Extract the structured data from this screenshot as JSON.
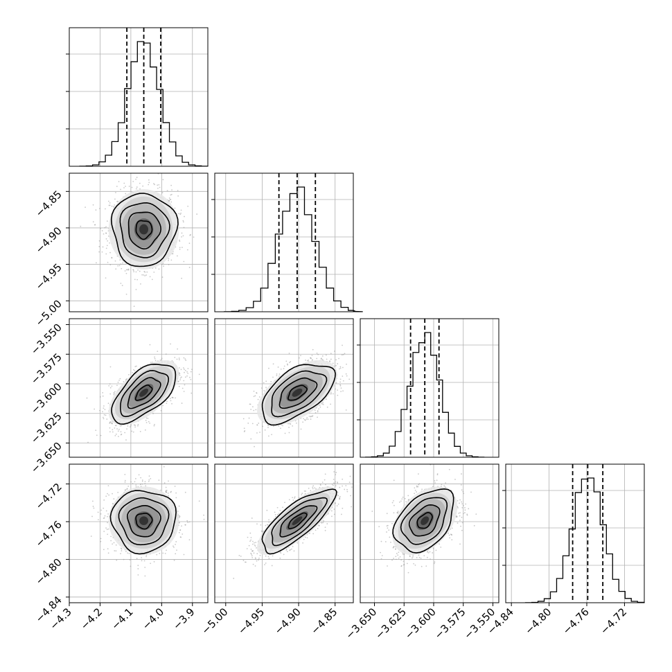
{
  "chart_data": {
    "type": "corner",
    "title": "",
    "grid": true,
    "parameters": [
      {
        "label": "",
        "mean": -4.058,
        "sigma": 0.052,
        "quantiles": [
          -4.113,
          -4.058,
          -4.003
        ],
        "axis_range": [
          -4.3,
          -3.85
        ],
        "ticks": [
          -4.3,
          -4.2,
          -4.1,
          -4.0,
          -3.9
        ],
        "tick_labels": [
          "−4.3",
          "−4.2",
          "−4.1",
          "−4.0",
          "−3.9"
        ]
      },
      {
        "label": "",
        "mean": -4.902,
        "sigma": 0.025,
        "quantiles": [
          -4.927,
          -4.902,
          -4.877
        ],
        "axis_range": [
          -5.015,
          -4.825
        ],
        "ticks": [
          -5.0,
          -4.95,
          -4.9,
          -4.85
        ],
        "tick_labels": [
          "−5.00",
          "−4.95",
          "−4.90",
          "−4.85"
        ]
      },
      {
        "label": "",
        "mean": -3.6075,
        "sigma": 0.0125,
        "quantiles": [
          -3.6195,
          -3.6075,
          -3.5955
        ],
        "axis_range": [
          -3.662,
          -3.545
        ],
        "ticks": [
          -3.65,
          -3.625,
          -3.6,
          -3.575,
          -3.55
        ],
        "tick_labels": [
          "−3.650",
          "−3.625",
          "−3.600",
          "−3.575",
          "−3.550"
        ]
      },
      {
        "label": "",
        "mean": -4.759,
        "sigma": 0.0165,
        "quantiles": [
          -4.775,
          -4.759,
          -4.743
        ],
        "axis_range": [
          -4.846,
          -4.699
        ],
        "ticks": [
          -4.84,
          -4.8,
          -4.76,
          -4.72
        ],
        "tick_labels": [
          "−4.84",
          "−4.80",
          "−4.76",
          "−4.72"
        ]
      }
    ],
    "correlations": [
      {
        "pair": [
          0,
          1
        ],
        "rho": 0.0
      },
      {
        "pair": [
          0,
          2
        ],
        "rho": 0.6
      },
      {
        "pair": [
          1,
          2
        ],
        "rho": 0.55
      },
      {
        "pair": [
          0,
          3
        ],
        "rho": 0.0
      },
      {
        "pair": [
          1,
          3
        ],
        "rho": 0.78
      },
      {
        "pair": [
          2,
          3
        ],
        "rho": 0.4
      }
    ],
    "contour_levels_sigma": [
      0.5,
      1.0,
      1.5,
      2.0
    ],
    "histogram_bins": 20
  }
}
